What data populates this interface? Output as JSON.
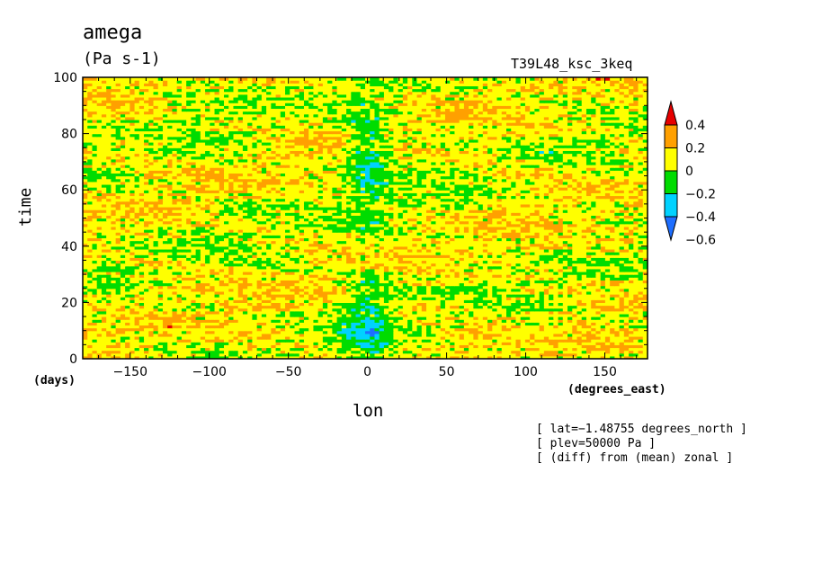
{
  "chart_data": {
    "type": "heatmap",
    "title": "amega",
    "units": "(Pa s-1)",
    "subtitle": "T39L48_ksc_3keq",
    "xlabel": "lon",
    "ylabel": "time",
    "x_unit": "(degrees_east)",
    "y_unit": "(days)",
    "xlim": [
      -180,
      177
    ],
    "ylim": [
      0,
      100
    ],
    "x_ticks": [
      -150,
      -100,
      -50,
      0,
      50,
      100,
      150
    ],
    "x_tick_labels": [
      "−150",
      "−100",
      "−50",
      "0",
      "50",
      "100",
      "150"
    ],
    "y_ticks": [
      0,
      20,
      40,
      60,
      80,
      100
    ],
    "y_tick_labels": [
      "0",
      "20",
      "40",
      "60",
      "80",
      "100"
    ],
    "colorbar": {
      "levels": [
        -0.6,
        -0.4,
        -0.2,
        0,
        0.2,
        0.4
      ],
      "labels": [
        "−0.6",
        "−0.4",
        "−0.2",
        "0",
        "0.2",
        "0.4"
      ],
      "colors": [
        "#1E6EFF",
        "#00D2FF",
        "#00DC00",
        "#FFFF00",
        "#FFA000",
        "#E60000"
      ]
    },
    "field_description": "omega anomaly from zonal mean; mostly yellow/orange (0 to 0.2) with green and cyan streaks; negative (blue) region near lon 0 throughout time",
    "notes": [
      "[ lat=−1.48755 degrees_north ]",
      "[ plev=50000 Pa ]",
      "[ (diff) from (mean) zonal ]"
    ]
  }
}
